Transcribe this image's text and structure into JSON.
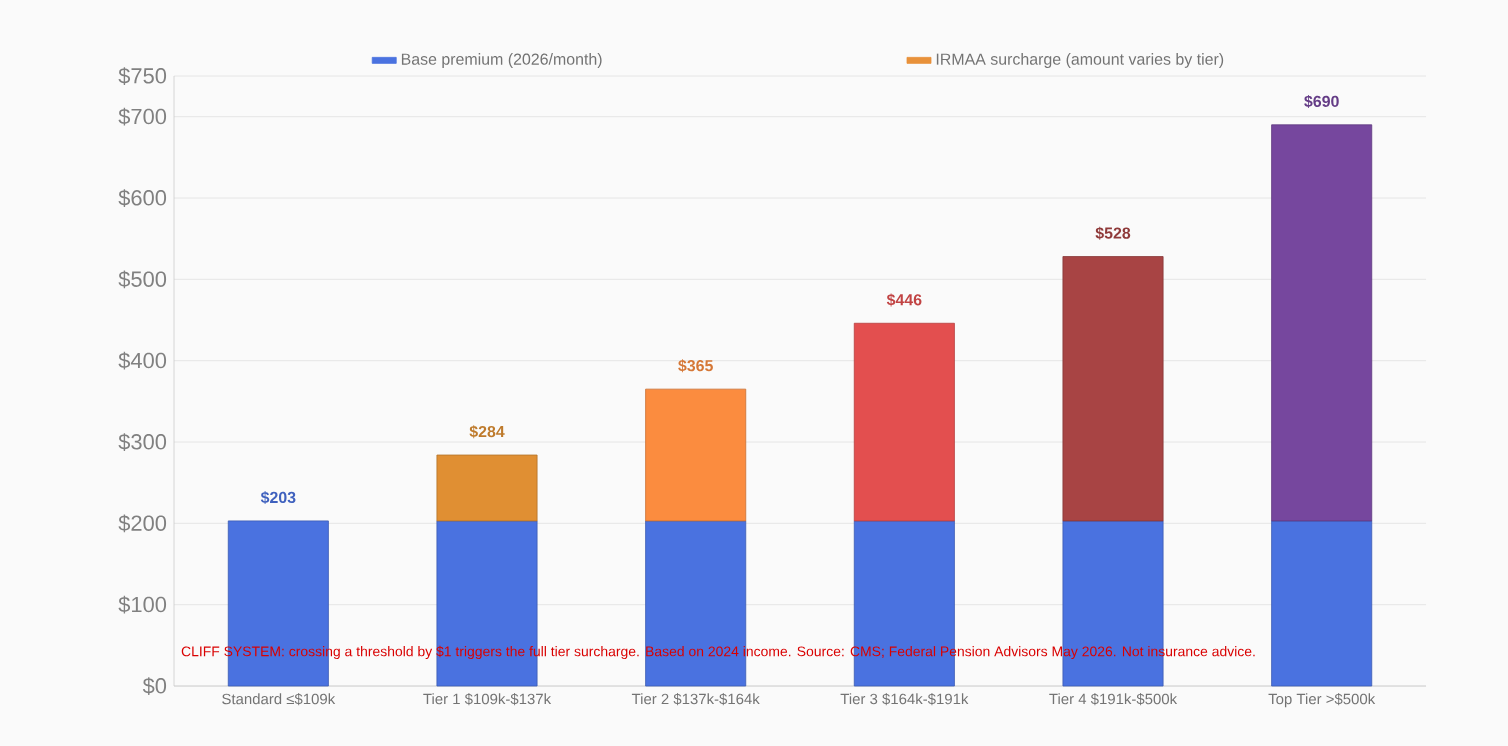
{
  "chart_data": {
    "type": "bar",
    "stacked": true,
    "categories": [
      "Standard ≤$109k",
      "Tier 1 $109k-$137k",
      "Tier 2 $137k-$164k",
      "Tier 3 $164k-$191k",
      "Tier 4 $191k-$500k",
      "Top Tier >$500k"
    ],
    "series": [
      {
        "name": "Base premium (2026/month)",
        "color": "#4a72e0",
        "values": [
          203,
          203,
          203,
          203,
          203,
          203
        ]
      },
      {
        "name": "IRMAA surcharge (amount varies by tier)",
        "color": "#e8913a",
        "colors": [
          "#e8913a",
          "#e08f33",
          "#fb8c3f",
          "#e34f4f",
          "#a84444",
          "#76479e"
        ],
        "values": [
          null,
          81,
          162,
          243,
          325,
          487
        ]
      }
    ],
    "totals": [
      "$203",
      "$284",
      "$365",
      "$446",
      "$528",
      "$690"
    ],
    "ylim": [
      0,
      750
    ],
    "yticks": [
      {
        "value": 0,
        "label": "$0"
      },
      {
        "value": 100,
        "label": "$100"
      },
      {
        "value": 200,
        "label": "$200"
      },
      {
        "value": 300,
        "label": "$300"
      },
      {
        "value": 400,
        "label": "$400"
      },
      {
        "value": 500,
        "label": "$500"
      },
      {
        "value": 600,
        "label": "$600"
      },
      {
        "value": 700,
        "label": "$700"
      },
      {
        "value": 750,
        "label": "$750"
      }
    ],
    "grid": "y",
    "legend": "top",
    "annotations": [
      "CLIFF SYSTEM: crossing a threshold by $1 triggers the full tier surcharge. Based on 2024 income. Source: CMS; Federal Pension Advisors May 2026. Not insurance advice."
    ]
  }
}
